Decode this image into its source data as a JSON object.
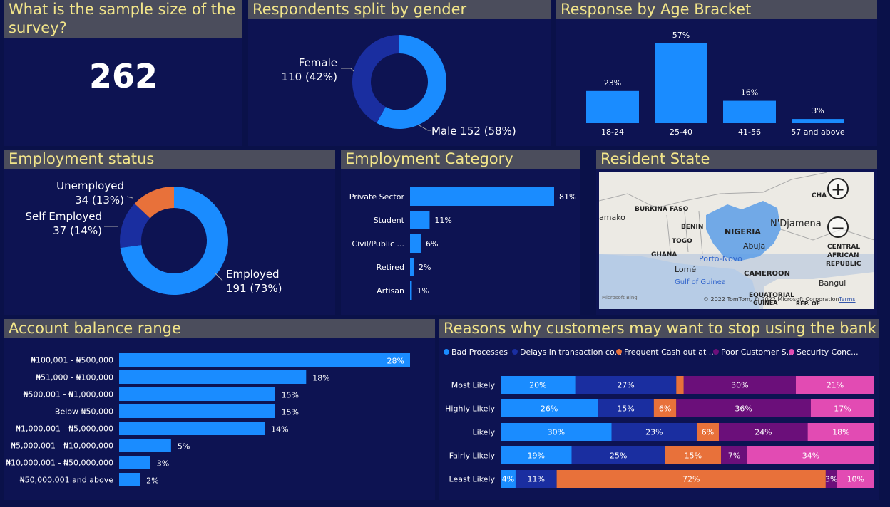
{
  "colors": {
    "background": "#0a1149",
    "panel": "#0d1352",
    "title_bg": "#4b4d5c",
    "title_text": "#f2e58a",
    "blue": "#1a8cff",
    "navy": "#1a2ea0",
    "orange": "#e8713a",
    "purple": "#6b0f7a",
    "pink": "#e24bb3"
  },
  "sample": {
    "title": "What is the sample size of the survey?",
    "value": "262"
  },
  "gender": {
    "title": "Respondents split by gender",
    "female_label": "Female",
    "female_value": "110 (42%)",
    "male_label": "Male 152 (58%)"
  },
  "age": {
    "title": "Response by Age Bracket"
  },
  "employment_status": {
    "title": "Employment status",
    "unemployed_label": "Unemployed",
    "unemployed_value": "34 (13%)",
    "self_label": "Self Employed",
    "self_value": "37 (14%)",
    "employed_label": "Employed",
    "employed_value": "191 (73%)"
  },
  "employment_category": {
    "title": "Employment Category"
  },
  "map": {
    "title": "Resident State",
    "labels": [
      "BURKINA FASO",
      "amako",
      "BENIN",
      "NIGERIA",
      "N'Djamena",
      "CHA",
      "TOGO",
      "Abuja",
      "GHANA",
      "Porto-Novo",
      "Lomé",
      "CAMEROON",
      "CENTRAL",
      "AFRICAN",
      "REPUBLIC",
      "Gulf of Guinea",
      "Bangui",
      "EQUATORIAL",
      "GUINEA",
      "REP. OF"
    ],
    "attribution": "© 2022 TomTom, © 2022 Microsoft Corporation",
    "terms": "Terms",
    "logo": "Microsoft Bing",
    "zoom_in": "+",
    "zoom_out": "−"
  },
  "balance": {
    "title": "Account balance range"
  },
  "reasons": {
    "title": "Reasons why customers may want to stop using the bank"
  },
  "chart_data": [
    {
      "type": "pie",
      "title": "Respondents split by gender",
      "categories": [
        "Female",
        "Male"
      ],
      "values": [
        110,
        152
      ],
      "percents": [
        42,
        58
      ],
      "colors": [
        "#1a2ea0",
        "#1a8cff"
      ]
    },
    {
      "type": "bar",
      "title": "Response by Age Bracket",
      "categories": [
        "18-24",
        "25-40",
        "41-56",
        "57 and above"
      ],
      "values": [
        23,
        57,
        16,
        3
      ],
      "labels": [
        "23%",
        "57%",
        "16%",
        "3%"
      ],
      "color": "#1a8cff"
    },
    {
      "type": "pie",
      "title": "Employment status",
      "categories": [
        "Employed",
        "Self Employed",
        "Unemployed"
      ],
      "values": [
        191,
        37,
        34
      ],
      "percents": [
        73,
        14,
        13
      ],
      "colors": [
        "#1a8cff",
        "#1a2ea0",
        "#e8713a"
      ]
    },
    {
      "type": "bar",
      "orientation": "horizontal",
      "title": "Employment Category",
      "categories": [
        "Private Sector",
        "Student",
        "Civil/Public ...",
        "Retired",
        "Artisan"
      ],
      "values": [
        81,
        11,
        6,
        2,
        1
      ],
      "labels": [
        "81%",
        "11%",
        "6%",
        "2%",
        "1%"
      ],
      "color": "#1a8cff"
    },
    {
      "type": "bar",
      "orientation": "horizontal",
      "title": "Account balance range",
      "categories": [
        "₦100,001 - ₦500,000",
        "₦51,000 - ₦100,000",
        "₦500,001 - ₦1,000,000",
        "Below ₦50,000",
        "₦1,000,001 - ₦5,000,000",
        "₦5,000,001 - ₦10,000,000",
        "₦10,000,001 - ₦50,000,000",
        "₦50,000,001 and above"
      ],
      "values": [
        28,
        18,
        15,
        15,
        14,
        5,
        3,
        2
      ],
      "labels": [
        "28%",
        "18%",
        "15%",
        "15%",
        "14%",
        "5%",
        "3%",
        "2%"
      ],
      "color": "#1a8cff"
    },
    {
      "type": "bar",
      "orientation": "horizontal",
      "stacked": "100%",
      "title": "Reasons why customers may want to stop using the bank",
      "categories": [
        "Most Likely",
        "Highly Likely",
        "Likely",
        "Fairly Likely",
        "Least Likely"
      ],
      "legend_position": "top-left",
      "series": [
        {
          "name": "Bad Processes",
          "legend": "Bad Processes",
          "color": "#1a8cff",
          "values": [
            20,
            26,
            30,
            19,
            4
          ]
        },
        {
          "name": "Delays in transaction co...",
          "legend": "Delays in transaction co...",
          "color": "#1a2ea0",
          "values": [
            27,
            15,
            23,
            25,
            11
          ]
        },
        {
          "name": "Frequent Cash out at ...",
          "legend": "Frequent Cash out at ...",
          "color": "#e8713a",
          "values": [
            2,
            6,
            6,
            15,
            72
          ]
        },
        {
          "name": "Poor Customer S...",
          "legend": "Poor Customer S...",
          "color": "#6b0f7a",
          "values": [
            30,
            36,
            24,
            7,
            3
          ]
        },
        {
          "name": "Security Conc...",
          "legend": "Security Conc...",
          "color": "#e24bb3",
          "values": [
            21,
            17,
            18,
            34,
            10
          ]
        }
      ],
      "segment_labels": [
        [
          "20%",
          "27%",
          "",
          "30%",
          "21%"
        ],
        [
          "26%",
          "15%",
          "6%",
          "36%",
          "17%"
        ],
        [
          "30%",
          "23%",
          "6%",
          "24%",
          "18%"
        ],
        [
          "19%",
          "25%",
          "15%",
          "7%",
          "34%"
        ],
        [
          "4%",
          "11%",
          "72%",
          "3%",
          "10%"
        ]
      ]
    }
  ]
}
